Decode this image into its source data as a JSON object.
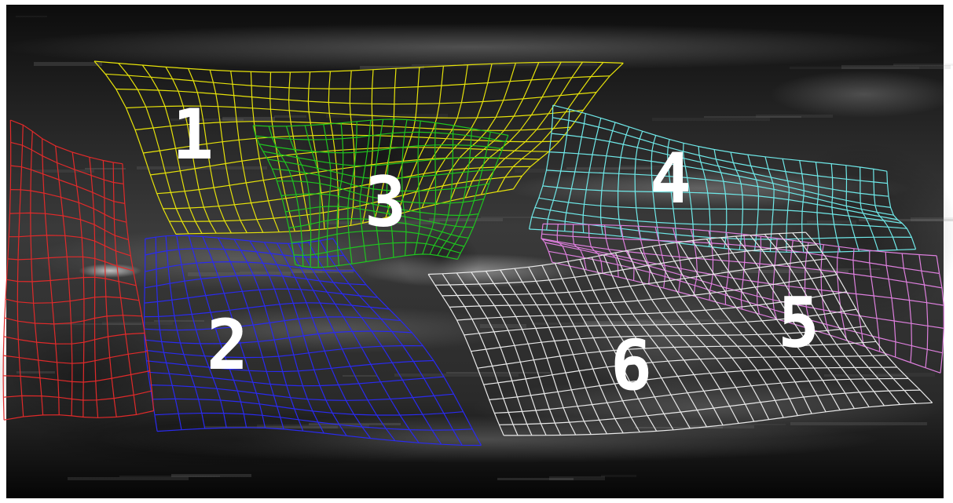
{
  "image": {
    "kind": "grayscale ultrasound cross-section with deformable grid overlays",
    "background": "#ffffff"
  },
  "regions": [
    {
      "label": "1",
      "color": "#e6e20a"
    },
    {
      "label": "2",
      "color": "#2a2af0"
    },
    {
      "label": "3",
      "color": "#1fc41f"
    },
    {
      "label": "4",
      "color": "#6fe8e8"
    },
    {
      "label": "5",
      "color": "#dd7fdd"
    },
    {
      "label": "6",
      "color": "#e8e8e8"
    },
    {
      "label": "",
      "color": "#e02a2a"
    }
  ]
}
